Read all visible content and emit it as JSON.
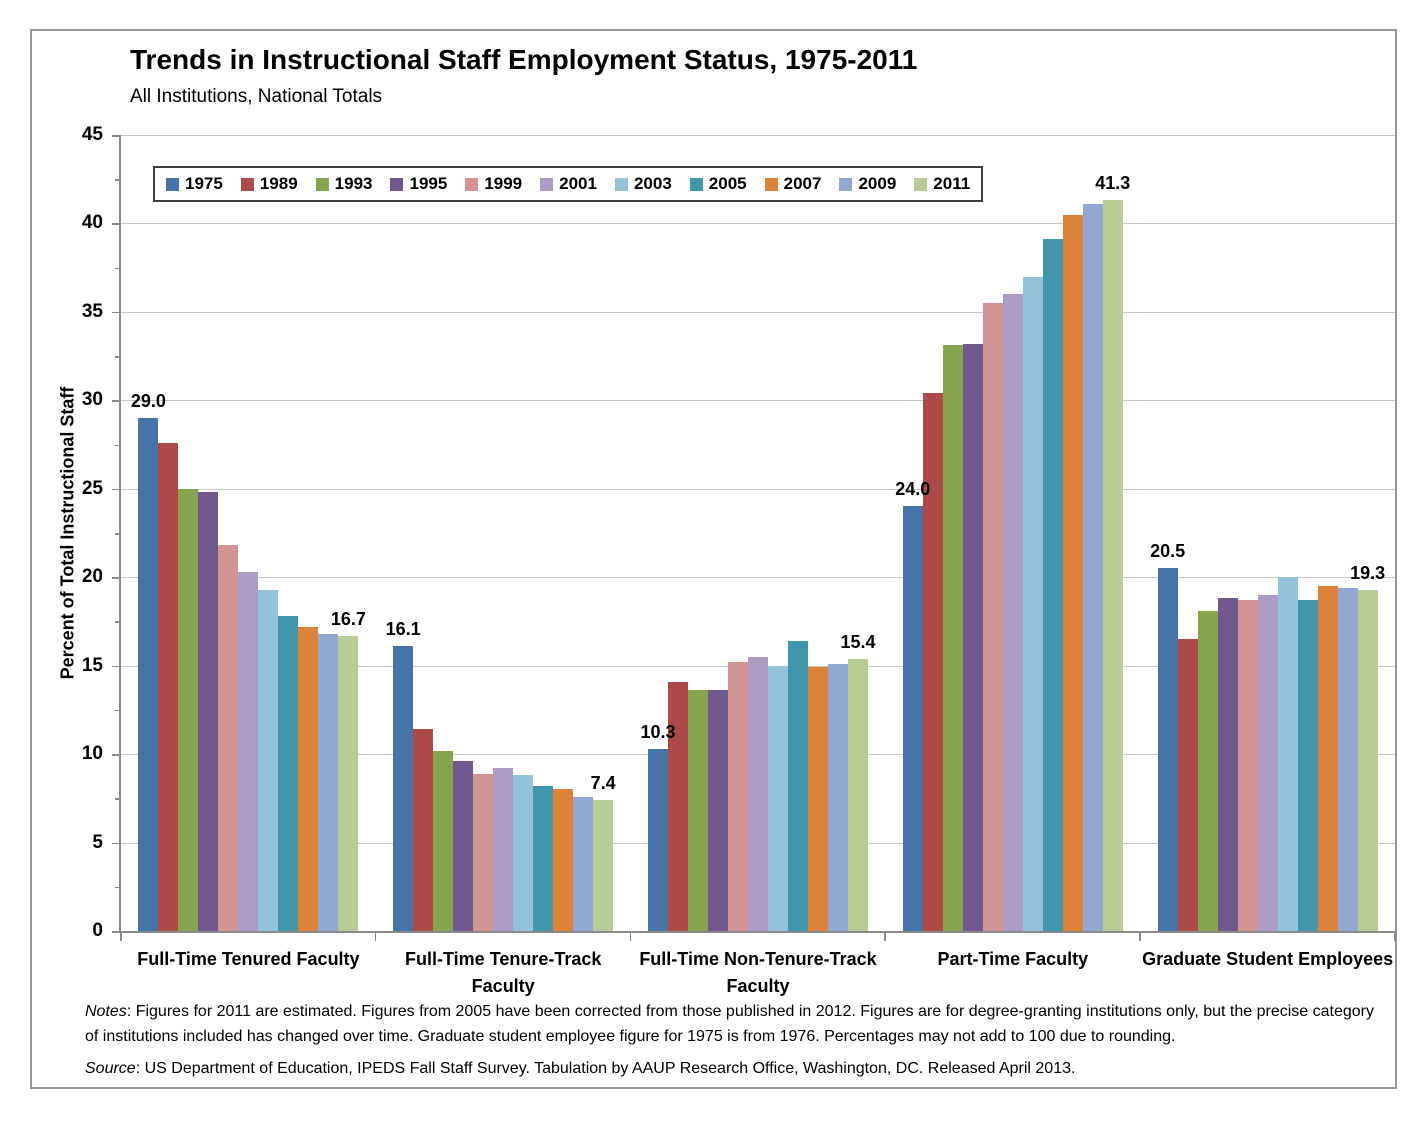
{
  "chart_data": {
    "type": "bar",
    "title": "Trends in Instructional Staff Employment Status, 1975-2011",
    "subtitle": "All Institutions, National Totals",
    "ylabel": "Percent of Total Instructional Staff",
    "ylim": [
      0,
      45
    ],
    "ytick_step": 5,
    "yticks": [
      0,
      5,
      10,
      15,
      20,
      25,
      30,
      35,
      40,
      45
    ],
    "grid": true,
    "legend_position": "top-left-inside",
    "categories": [
      "Full-Time Tenured Faculty",
      "Full-Time Tenure-Track Faculty",
      "Full-Time Non-Tenure-Track Faculty",
      "Part-Time Faculty",
      "Graduate Student Employees"
    ],
    "category_label_lines": [
      [
        "Full-Time Tenured Faculty"
      ],
      [
        "Full-Time Tenure-Track",
        "Faculty"
      ],
      [
        "Full-Time Non-Tenure-Track",
        "Faculty"
      ],
      [
        "Part-Time Faculty"
      ],
      [
        "Graduate Student Employees"
      ]
    ],
    "series": [
      {
        "name": "1975",
        "color": "#4673A8",
        "values": [
          29.0,
          16.1,
          10.3,
          24.0,
          20.5
        ]
      },
      {
        "name": "1989",
        "color": "#AC4A48",
        "values": [
          27.6,
          11.4,
          14.1,
          30.4,
          16.5
        ]
      },
      {
        "name": "1993",
        "color": "#86A44E",
        "values": [
          25.0,
          10.2,
          13.6,
          33.1,
          18.1
        ]
      },
      {
        "name": "1995",
        "color": "#70588F",
        "values": [
          24.8,
          9.6,
          13.6,
          33.2,
          18.8
        ]
      },
      {
        "name": "1999",
        "color": "#D29394",
        "values": [
          21.8,
          8.9,
          15.2,
          35.5,
          18.7
        ]
      },
      {
        "name": "2001",
        "color": "#AC9BC4",
        "values": [
          20.3,
          9.2,
          15.5,
          36.0,
          19.0
        ]
      },
      {
        "name": "2003",
        "color": "#93C3D8",
        "values": [
          19.3,
          8.8,
          15.0,
          37.0,
          20.0
        ]
      },
      {
        "name": "2005",
        "color": "#4196AB",
        "values": [
          17.8,
          8.2,
          16.4,
          39.1,
          18.7
        ]
      },
      {
        "name": "2007",
        "color": "#DC8239",
        "values": [
          17.2,
          8.0,
          14.9,
          40.5,
          19.5
        ]
      },
      {
        "name": "2009",
        "color": "#93A8D1",
        "values": [
          16.8,
          7.6,
          15.1,
          41.1,
          19.4
        ]
      },
      {
        "name": "2011",
        "color": "#B8CD95",
        "values": [
          16.7,
          7.4,
          15.4,
          41.3,
          19.3
        ]
      }
    ],
    "annotations": [
      {
        "category_index": 0,
        "series_index": 0,
        "text": "29.0"
      },
      {
        "category_index": 0,
        "series_index": 10,
        "text": "16.7"
      },
      {
        "category_index": 1,
        "series_index": 0,
        "text": "16.1"
      },
      {
        "category_index": 1,
        "series_index": 10,
        "text": "7.4"
      },
      {
        "category_index": 2,
        "series_index": 0,
        "text": "10.3"
      },
      {
        "category_index": 2,
        "series_index": 10,
        "text": "15.4"
      },
      {
        "category_index": 3,
        "series_index": 0,
        "text": "24.0"
      },
      {
        "category_index": 3,
        "series_index": 10,
        "text": "41.3"
      },
      {
        "category_index": 4,
        "series_index": 0,
        "text": "20.5"
      },
      {
        "category_index": 4,
        "series_index": 10,
        "text": "19.3"
      }
    ]
  },
  "notes": {
    "label": "Notes",
    "text": ": Figures for 2011 are estimated. Figures from 2005 have been corrected from those published in 2012. Figures are for degree-granting institutions only, but the precise category of institutions included has changed over time. Graduate student employee figure for 1975 is from 1976. Percentages may not add to 100 due to rounding."
  },
  "source": {
    "label": "Source",
    "text": ": US Department of Education, IPEDS Fall Staff Survey. Tabulation by AAUP Research Office, Washington, DC. Released April 2013."
  },
  "colors": {
    "gridline": "#C6C6C6",
    "axis": "#8A8A8A",
    "frame_border": "#979797",
    "legend_border": "#3F3F3F",
    "text": "#000000"
  }
}
